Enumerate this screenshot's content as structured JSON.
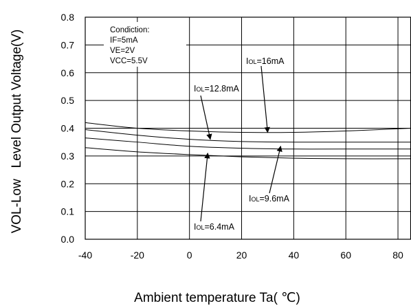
{
  "chart_data": {
    "type": "line",
    "title": "",
    "xlabel": "Ambient temperature Ta( ℃)",
    "ylabel": "VOL-Low   Level Output Voltage(V)",
    "xlim": [
      -40,
      85
    ],
    "ylim": [
      0,
      0.8
    ],
    "x_ticks": [
      "-40",
      "-20",
      "0",
      "20",
      "40",
      "60",
      "80"
    ],
    "y_ticks": [
      "0.0",
      "0.1",
      "0.2",
      "0.3",
      "0.4",
      "0.5",
      "0.6",
      "0.7",
      "0.8"
    ],
    "grid": true,
    "conditions": {
      "heading": "Condiction:",
      "lines": [
        "IF=5mA",
        "VE=2V",
        "VCC=5.5V"
      ]
    },
    "series": [
      {
        "name": "IOL=16mA",
        "label_main": "I",
        "label_sub": "OL",
        "label_tail": "=16mA",
        "x": [
          -40,
          -20,
          0,
          20,
          40,
          60,
          85
        ],
        "y": [
          0.42,
          0.4,
          0.39,
          0.385,
          0.385,
          0.39,
          0.4
        ]
      },
      {
        "name": "IOL=12.8mA",
        "label_main": "I",
        "label_sub": "OL",
        "label_tail": "=12.8mA",
        "x": [
          -40,
          -20,
          0,
          20,
          40,
          60,
          85
        ],
        "y": [
          0.395,
          0.375,
          0.36,
          0.352,
          0.35,
          0.35,
          0.35
        ]
      },
      {
        "name": "IOL=9.6mA",
        "label_main": "I",
        "label_sub": "OL",
        "label_tail": "=9.6mA",
        "x": [
          -40,
          -20,
          0,
          20,
          40,
          60,
          85
        ],
        "y": [
          0.365,
          0.35,
          0.335,
          0.328,
          0.325,
          0.325,
          0.325
        ]
      },
      {
        "name": "IOL=6.4mA",
        "label_main": "I",
        "label_sub": "OL",
        "label_tail": "=6.4mA",
        "x": [
          -40,
          -20,
          0,
          20,
          40,
          60,
          85
        ],
        "y": [
          0.33,
          0.315,
          0.305,
          0.297,
          0.292,
          0.29,
          0.29
        ]
      }
    ],
    "annotations": [
      {
        "series": "IOL=16mA",
        "arrow_tip": [
          30,
          0.385
        ]
      },
      {
        "series": "IOL=12.8mA",
        "arrow_tip": [
          8,
          0.36
        ]
      },
      {
        "series": "IOL=9.6mA",
        "arrow_tip": [
          35,
          0.335
        ]
      },
      {
        "series": "IOL=6.4mA",
        "arrow_tip": [
          7,
          0.31
        ]
      }
    ]
  }
}
